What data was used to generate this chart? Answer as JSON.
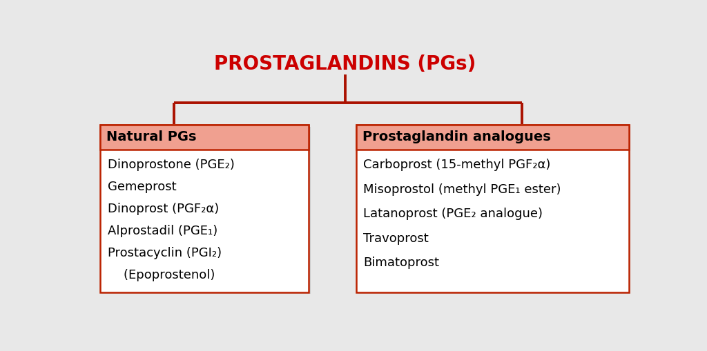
{
  "title": "PROSTAGLANDINS (PGs)",
  "title_color": "#cc0000",
  "title_fontsize": 20,
  "background_color": "#e8e8e8",
  "box_border_color": "#bb2200",
  "box_header_color": "#f0a090",
  "box_body_color": "#ffffff",
  "left_header": "Natural PGs",
  "right_header": "Prostaglandin analogues",
  "left_items": [
    "Dinoprostone (PGE₂)",
    "Gemeprost",
    "Dinoprost (PGF₂α)",
    "Alprostadil (PGE₁)",
    "Prostacyclin (PGI₂)",
    "    (Epoprostenol)"
  ],
  "right_items": [
    "Carboprost (15-methyl PGF₂α)",
    "Misoprostol (methyl PGE₁ ester)",
    "Latanoprost (PGE₂ analogue)",
    "Travoprost",
    "Bimatoprost"
  ],
  "line_color": "#aa1100",
  "line_width": 2.8,
  "header_fontsize": 14,
  "item_fontsize": 13
}
